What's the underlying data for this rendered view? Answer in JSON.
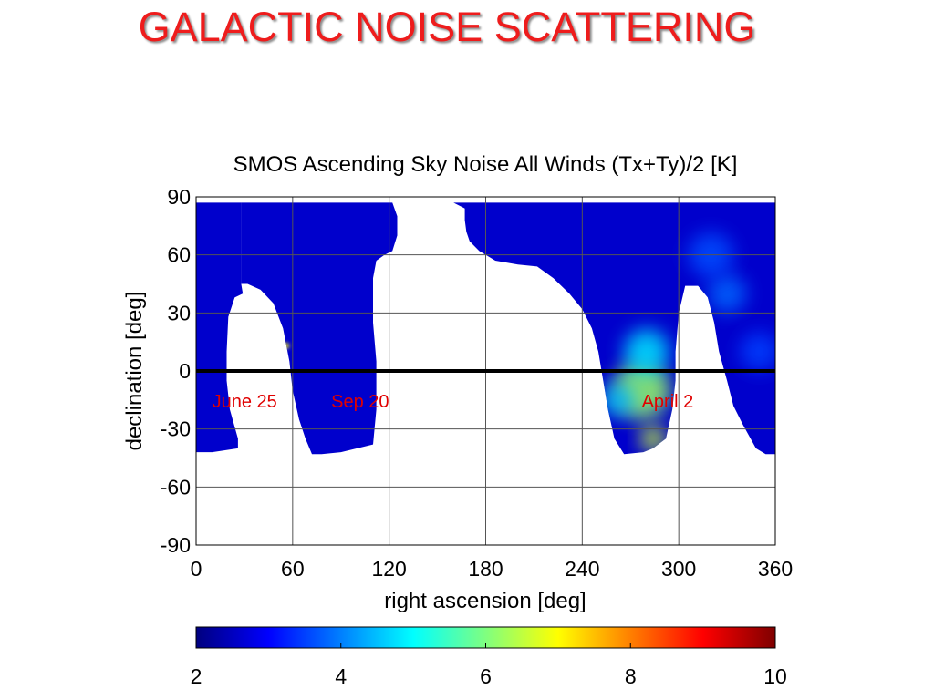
{
  "slide": {
    "title": "GALACTIC NOISE SCATTERING"
  },
  "chart_data": {
    "type": "heatmap",
    "title": "SMOS Ascending Sky Noise All Winds (Tx+Ty)/2 [K]",
    "xlabel": "right ascension [deg]",
    "ylabel": "declination [deg]",
    "xlim": [
      0,
      360
    ],
    "ylim": [
      -90,
      90
    ],
    "xticks": [
      0,
      60,
      120,
      180,
      240,
      300,
      360
    ],
    "yticks": [
      90,
      60,
      30,
      0,
      -30,
      -60,
      -90
    ],
    "grid": true,
    "colorbar": {
      "range": [
        2,
        10
      ],
      "ticks": [
        2,
        4,
        6,
        8,
        10
      ],
      "colormap": "jet",
      "placement": "bottom"
    },
    "reference_line": {
      "declination": 0,
      "color": "#000000"
    },
    "annotations": [
      {
        "text": "June 25",
        "ra": 10,
        "dec": -15,
        "color": "#e00000"
      },
      {
        "text": "Sep 20",
        "ra": 84,
        "dec": -15,
        "color": "#e00000"
      },
      {
        "text": "April 2",
        "ra": 277,
        "dec": -15,
        "color": "#e00000"
      }
    ],
    "coverage_bands": [
      {
        "name": "band-1",
        "boundary": [
          [
            0,
            87
          ],
          [
            28,
            87
          ],
          [
            28,
            45
          ],
          [
            29,
            40
          ],
          [
            24,
            38
          ],
          [
            20,
            28
          ],
          [
            19,
            10
          ],
          [
            19,
            -5
          ],
          [
            21,
            -20
          ],
          [
            26,
            -35
          ],
          [
            26,
            -40
          ],
          [
            18,
            -41
          ],
          [
            10,
            -42
          ],
          [
            2,
            -42
          ],
          [
            0,
            -42
          ]
        ]
      },
      {
        "name": "band-2",
        "boundary": [
          [
            28,
            87
          ],
          [
            122,
            87
          ],
          [
            125,
            80
          ],
          [
            125,
            70
          ],
          [
            122,
            62
          ],
          [
            117,
            60
          ],
          [
            112,
            57
          ],
          [
            110,
            48
          ],
          [
            110,
            25
          ],
          [
            112,
            5
          ],
          [
            112,
            -20
          ],
          [
            110,
            -38
          ],
          [
            100,
            -40
          ],
          [
            90,
            -42
          ],
          [
            78,
            -43
          ],
          [
            72,
            -43
          ],
          [
            68,
            -35
          ],
          [
            64,
            -25
          ],
          [
            60,
            -10
          ],
          [
            58,
            5
          ],
          [
            54,
            22
          ],
          [
            48,
            35
          ],
          [
            40,
            42
          ],
          [
            32,
            45
          ],
          [
            28,
            45
          ]
        ]
      },
      {
        "name": "band-3",
        "boundary": [
          [
            160,
            87
          ],
          [
            360,
            87
          ],
          [
            360,
            -43
          ],
          [
            354,
            -43
          ],
          [
            348,
            -40
          ],
          [
            340,
            -28
          ],
          [
            334,
            -18
          ],
          [
            330,
            -5
          ],
          [
            325,
            10
          ],
          [
            322,
            25
          ],
          [
            318,
            38
          ],
          [
            312,
            44
          ],
          [
            304,
            44
          ],
          [
            300,
            30
          ],
          [
            298,
            10
          ],
          [
            298,
            -5
          ],
          [
            296,
            -20
          ],
          [
            292,
            -35
          ],
          [
            284,
            -40
          ],
          [
            278,
            -42
          ],
          [
            266,
            -43
          ],
          [
            260,
            -35
          ],
          [
            256,
            -20
          ],
          [
            253,
            -5
          ],
          [
            250,
            10
          ],
          [
            246,
            22
          ],
          [
            240,
            32
          ],
          [
            232,
            40
          ],
          [
            222,
            48
          ],
          [
            212,
            54
          ],
          [
            200,
            55
          ],
          [
            186,
            57
          ],
          [
            176,
            62
          ],
          [
            170,
            67
          ],
          [
            168,
            72
          ],
          [
            167,
            78
          ],
          [
            167,
            84
          ],
          [
            160,
            87
          ]
        ]
      }
    ],
    "hotspots": [
      {
        "ra": 277,
        "dec": -10,
        "radius_deg": 18,
        "value": 6.2
      },
      {
        "ra": 284,
        "dec": -35,
        "radius_deg": 8,
        "value": 6.6
      },
      {
        "ra": 280,
        "dec": 10,
        "radius_deg": 14,
        "value": 4.8
      },
      {
        "ra": 262,
        "dec": -15,
        "radius_deg": 10,
        "value": 4.5
      },
      {
        "ra": 56,
        "dec": 13,
        "radius_deg": 2,
        "value": 7.0
      },
      {
        "ra": 330,
        "dec": 40,
        "radius_deg": 12,
        "value": 3.8
      },
      {
        "ra": 320,
        "dec": 60,
        "radius_deg": 14,
        "value": 3.6
      },
      {
        "ra": 350,
        "dec": 10,
        "radius_deg": 12,
        "value": 3.5
      }
    ],
    "background_value": 2.6
  }
}
